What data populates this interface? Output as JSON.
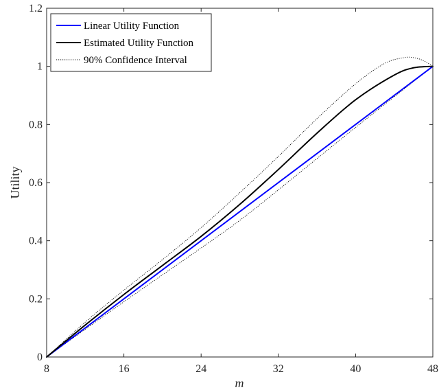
{
  "chart_data": {
    "type": "line",
    "xlabel": "m",
    "ylabel": "Utility",
    "xlim": [
      8,
      48
    ],
    "ylim": [
      0,
      1.2
    ],
    "xticks": [
      8,
      16,
      24,
      32,
      40,
      48
    ],
    "yticks": [
      0,
      0.2,
      0.4,
      0.6,
      0.8,
      1,
      1.2
    ],
    "xtick_labels": [
      "8",
      "16",
      "24",
      "32",
      "40",
      "48"
    ],
    "ytick_labels": [
      "0",
      "0.2",
      "0.4",
      "0.6",
      "0.8",
      "1",
      "1.2"
    ],
    "grid": false,
    "legend_position": "top-left",
    "series": [
      {
        "name": "Linear Utility Function",
        "color": "#0000ff",
        "style": "solid",
        "x": [
          8,
          48
        ],
        "y": [
          0,
          1
        ]
      },
      {
        "name": "Estimated Utility Function",
        "color": "#000000",
        "style": "solid",
        "x": [
          8,
          12,
          16,
          20,
          24,
          28,
          32,
          36,
          40,
          44,
          46,
          48
        ],
        "y": [
          0,
          0.11,
          0.215,
          0.315,
          0.415,
          0.525,
          0.645,
          0.77,
          0.885,
          0.97,
          0.995,
          1
        ]
      },
      {
        "name": "90% Confidence Interval",
        "color": "#000000",
        "style": "dotted",
        "x": [
          8,
          12,
          16,
          20,
          24,
          28,
          32,
          36,
          40,
          43,
          45,
          46,
          47,
          48
        ],
        "y": [
          0,
          0.12,
          0.23,
          0.335,
          0.445,
          0.565,
          0.69,
          0.82,
          0.94,
          1.01,
          1.03,
          1.03,
          1.02,
          1
        ]
      },
      {
        "color": "#000000",
        "style": "dotted",
        "x": [
          8,
          16,
          24,
          28,
          32,
          40,
          48
        ],
        "y": [
          0,
          0.19,
          0.375,
          0.47,
          0.575,
          0.79,
          1
        ]
      }
    ]
  }
}
